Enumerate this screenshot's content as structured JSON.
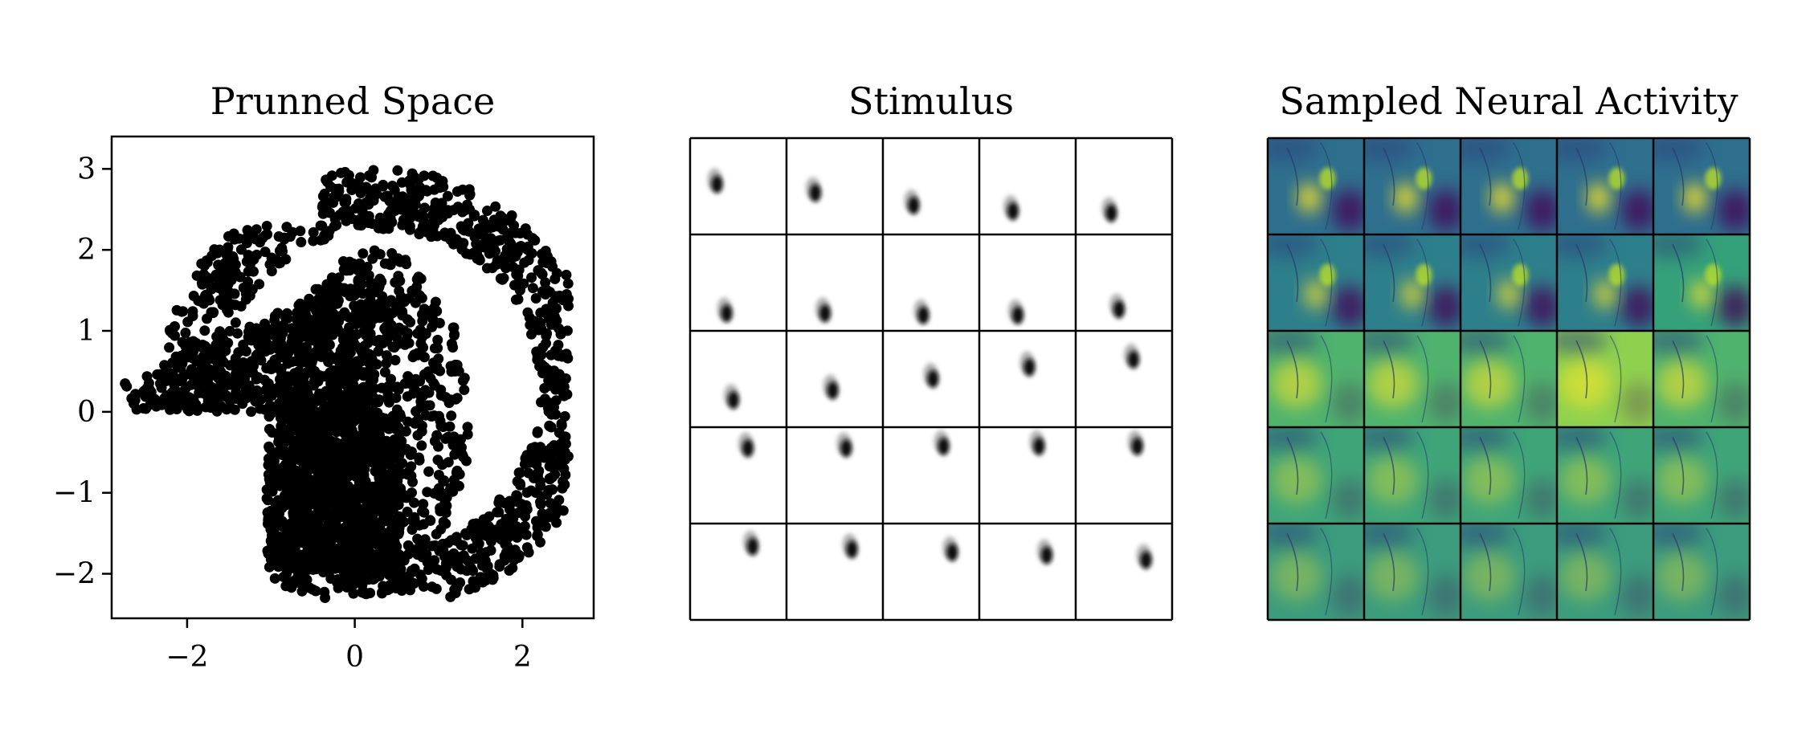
{
  "panels": {
    "scatter_title": "Prunned Space",
    "stimulus_title": "Stimulus",
    "neural_title": "Sampled Neural Activity"
  },
  "chart_data": [
    {
      "type": "scatter",
      "title": "Prunned Space",
      "xlabel": "",
      "ylabel": "",
      "xlim": [
        -2.9,
        2.85
      ],
      "ylim": [
        -2.55,
        3.4
      ],
      "xticks": [
        -2,
        0,
        2
      ],
      "xtick_labels": [
        "−2",
        "0",
        "2"
      ],
      "yticks": [
        -2,
        -1,
        0,
        1,
        2,
        3
      ],
      "ytick_labels": [
        "−2",
        "−1",
        "0",
        "1",
        "2",
        "3"
      ],
      "grid": false,
      "marker_color": "#000000",
      "point_count_approx": 4000,
      "dense_regions": [
        {
          "desc": "lower-left square block",
          "x": [
            -1.05,
            0.55
          ],
          "y": [
            -1.95,
            0.0
          ]
        },
        {
          "desc": "upper-left wedge",
          "x": [
            -2.75,
            0.3
          ],
          "y": [
            0.0,
            1.8
          ]
        },
        {
          "desc": "central disk",
          "x": [
            -0.9,
            1.35
          ],
          "y": [
            -2.2,
            2.0
          ]
        }
      ],
      "sparse_outer_ring": {
        "center": [
          0.3,
          0.25
        ],
        "radius": [
          2.0,
          2.75
        ],
        "y_max": 3.1
      }
    },
    {
      "type": "image_grid",
      "title": "Stimulus",
      "rows": 5,
      "cols": 5,
      "colormap": "gray",
      "content": "dark blob per cell tracing a path across frames"
    },
    {
      "type": "heatmap",
      "title": "Sampled Neural Activity",
      "rows": 5,
      "cols": 5,
      "colormap": "viridis",
      "colors": {
        "low": "#440154",
        "mid": "#21918c",
        "high": "#fde725"
      },
      "content": "cortical activity frames; bright yellow focus in early frames, overall green/yellow brightness in later frames"
    }
  ]
}
